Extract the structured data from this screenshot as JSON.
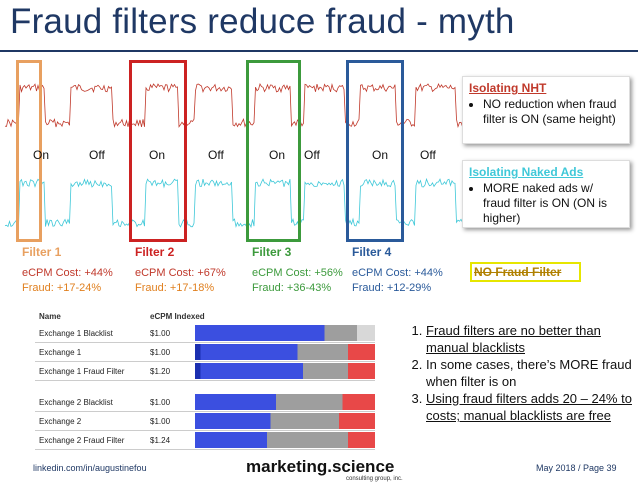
{
  "title": "Fraud filters reduce fraud - myth",
  "colors": {
    "title": "#1f3864",
    "nht_line": "#c0392b",
    "naked_line": "#3fc8d8",
    "filter1": "#e8a060",
    "filter2": "#cc2222",
    "filter3": "#3c9a3c",
    "filter4": "#2a5a9a"
  },
  "on_off_labels": [
    "On",
    "Off",
    "On",
    "Off",
    "On",
    "Off",
    "On",
    "Off"
  ],
  "panels": {
    "nht": {
      "heading": "Isolating NHT",
      "bullets": [
        "NO reduction when fraud filter is ON (same height)"
      ]
    },
    "naked": {
      "heading": "Isolating Naked Ads",
      "bullets": [
        "MORE naked ads w/ fraud filter is ON (ON is higher)"
      ]
    }
  },
  "filters": [
    {
      "name": "Filter 1",
      "cost": "eCPM Cost: +44%",
      "fraud": "Fraud: +17-24%"
    },
    {
      "name": "Filter 2",
      "cost": "eCPM Cost: +67%",
      "fraud": "Fraud: +17-18%"
    },
    {
      "name": "Filter 3",
      "cost": "eCPM Cost: +56%",
      "fraud": "Fraud: +36-43%"
    },
    {
      "name": "Filter 4",
      "cost": "eCPM Cost: +44%",
      "fraud": "Fraud: +12-29%"
    }
  ],
  "no_fraud_filter": "NO Fraud Filter",
  "table": {
    "headers": {
      "name": "Name",
      "price": "eCPM Indexed"
    },
    "rows": [
      {
        "name": "Exchange 1 Blacklist",
        "price": "$1.00"
      },
      {
        "name": "Exchange 1",
        "price": "$1.00"
      },
      {
        "name": "Exchange 1 Fraud Filter",
        "price": "$1.20"
      },
      {
        "name": "Exchange 2 Blacklist",
        "price": "$1.00"
      },
      {
        "name": "Exchange 2",
        "price": "$1.00"
      },
      {
        "name": "Exchange 2 Fraud Filter",
        "price": "$1.24"
      }
    ]
  },
  "points": [
    "Fraud filters are no better than manual blacklists",
    "In some cases, there’s MORE fraud when filter is on",
    "Using fraud filters adds 20 – 24% to costs; manual blacklists are free"
  ],
  "footer": {
    "left": "linkedin.com/in/augustinefou",
    "brand": "marketing.science",
    "brand_sub": "consulting group, inc.",
    "right": "May 2018 / Page 39"
  }
}
